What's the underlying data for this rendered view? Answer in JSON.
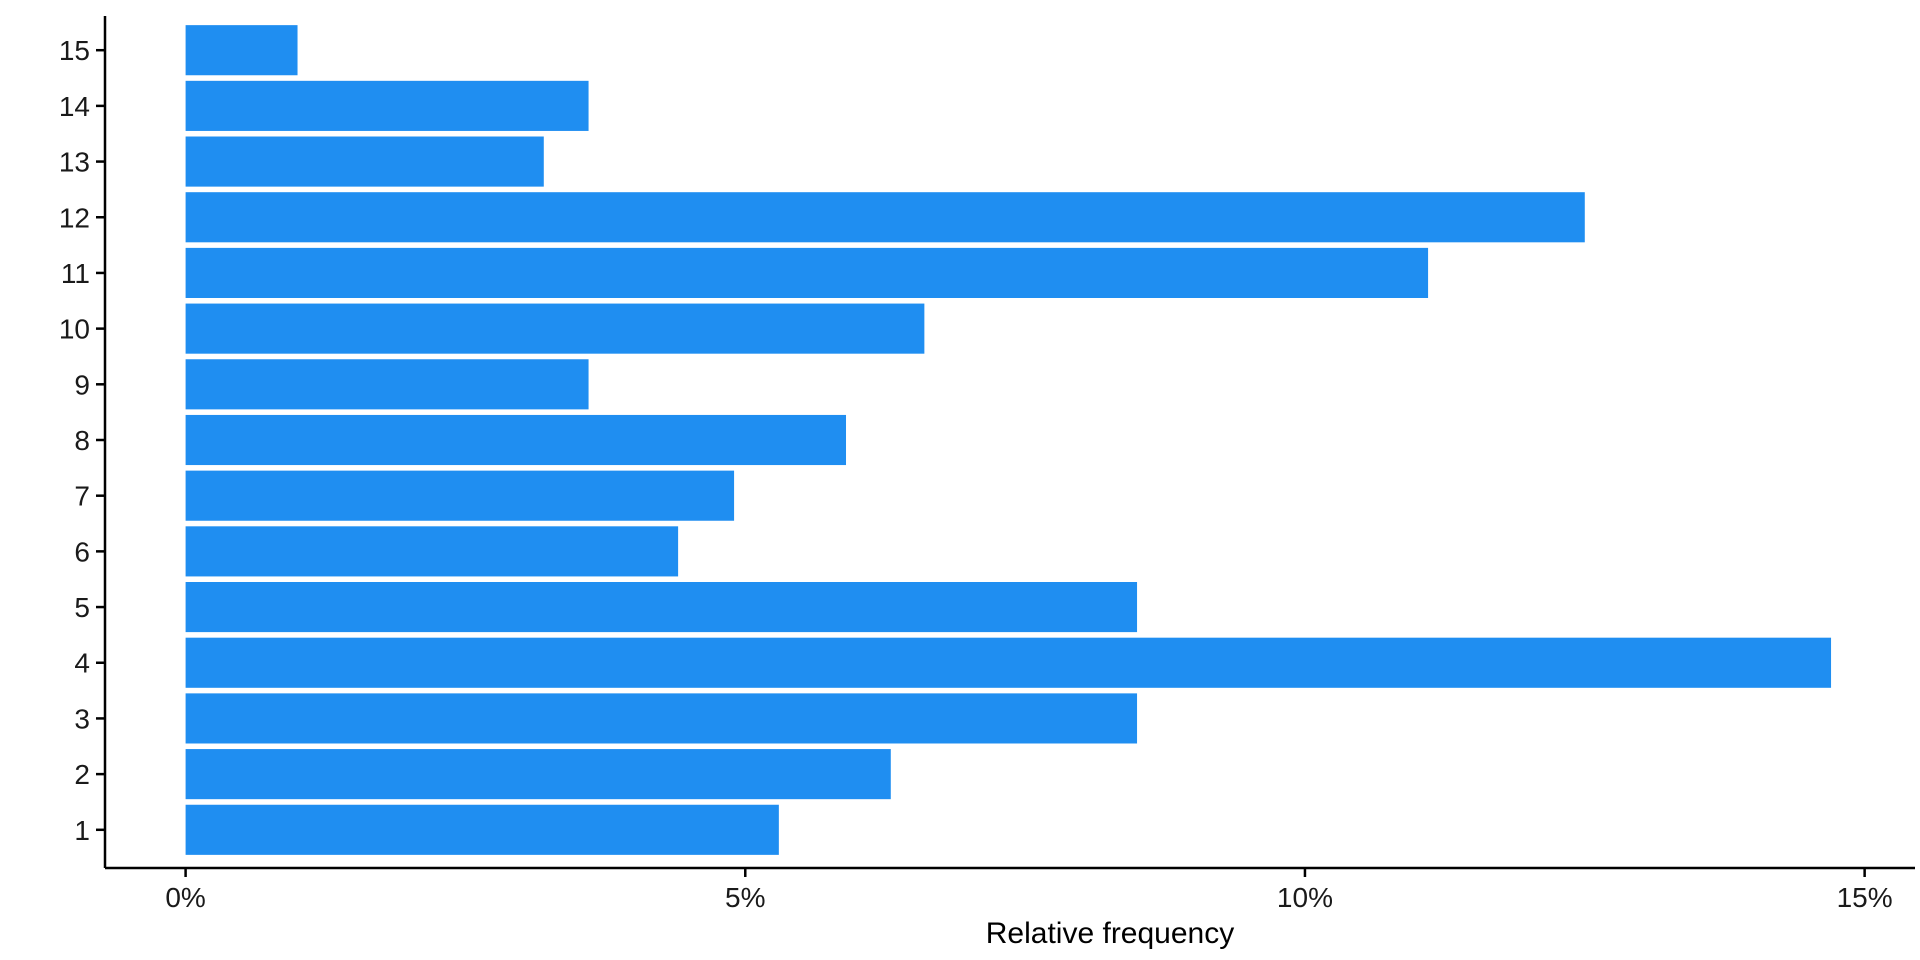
{
  "chart_data": {
    "type": "bar",
    "orientation": "horizontal",
    "categories": [
      "1",
      "2",
      "3",
      "4",
      "5",
      "6",
      "7",
      "8",
      "9",
      "10",
      "11",
      "12",
      "13",
      "14",
      "15"
    ],
    "values": [
      5.3,
      6.3,
      8.5,
      14.7,
      8.5,
      4.4,
      4.9,
      5.9,
      3.6,
      6.6,
      11.1,
      12.5,
      3.2,
      3.6,
      1.0
    ],
    "title": "",
    "xlabel": "Relative frequency",
    "ylabel": "",
    "xlim": [
      -0.72,
      15.45
    ],
    "xticks": [
      0,
      5,
      10,
      15
    ],
    "xtick_labels": [
      "0%",
      "5%",
      "10%",
      "15%"
    ],
    "grid": false,
    "bar_color": "#1F8EF1"
  }
}
